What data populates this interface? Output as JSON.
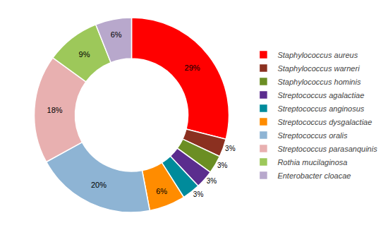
{
  "chart_data": {
    "type": "pie",
    "categories": [
      "Staphylococcus aureus",
      "Staphylococcus warneri",
      "Staphylococcus hominis",
      "Streptococcus agalactiae",
      "Streptococcus anginosus",
      "Streptococcus dysgalactiae",
      "Streptococcus oralis",
      "Streptococcus parasanquinis",
      "Rothia mucilaginosa",
      "Enterobacter cloacae"
    ],
    "values": [
      29,
      3,
      3,
      3,
      3,
      6,
      20,
      18,
      9,
      6
    ],
    "value_labels": [
      "29%",
      "3%",
      "3%",
      "3%",
      "3%",
      "6%",
      "20%",
      "18%",
      "9%",
      "6%"
    ],
    "colors": [
      "#FF0000",
      "#8B3020",
      "#6B8E23",
      "#5B2D8E",
      "#008B9B",
      "#FF8C00",
      "#8EB4D4",
      "#E8B0B0",
      "#9DC85A",
      "#B8A8CC"
    ],
    "data_labels": true,
    "legend": "right"
  }
}
